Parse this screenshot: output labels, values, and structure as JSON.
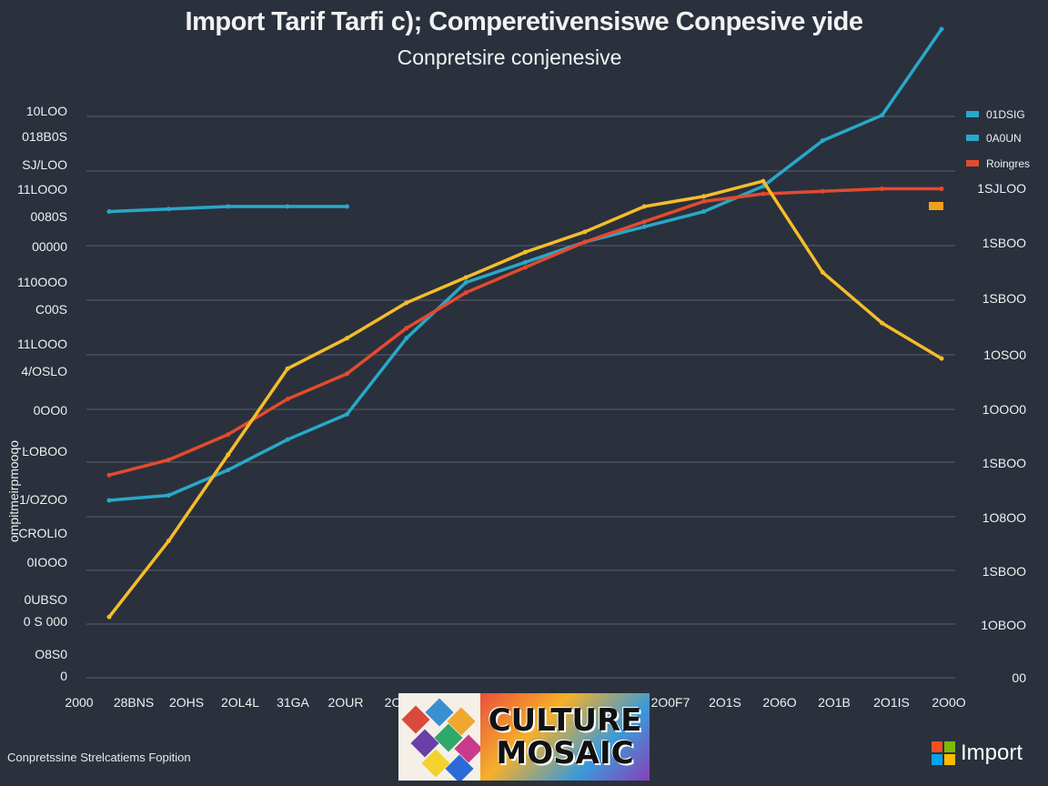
{
  "title": "Import Tarif Tarfi c); Comperetivensiswe Conpesive yide",
  "subtitle": "Conpretsire conjenesive",
  "caption": "Conpretssine Strelcatiems Fopition",
  "brand": {
    "text": "Import",
    "logo": "windows-logo-icon"
  },
  "image_overlay": {
    "lines": [
      "CULTURE",
      "MOSAIC"
    ]
  },
  "chart_data": {
    "type": "line",
    "title": "Import Tarif Tarfi c); Comperetivensiswe Conpesive yide",
    "subtitle": "Conpretsire conjenesive",
    "x": [
      "2000",
      "2005",
      "2009",
      "2011",
      "2012",
      "2014",
      "2015",
      "2016",
      "2017",
      "2018",
      "2019",
      "2020",
      "2021",
      "2022",
      "2023"
    ],
    "x_tick_labels": [
      "2000",
      "28BNS",
      "2OHS",
      "2OL4L",
      "31GA",
      "2OUR",
      "2O",
      "",
      "",
      "",
      "2O0F7",
      "2O1S",
      "2O6O",
      "2O1B",
      "2O1IS",
      "2O0O"
    ],
    "y_tick_labels_left": [
      "10LOO",
      "018B0S",
      "SJ/LOO",
      "11LOOO",
      "0080S",
      "00000",
      "110OOO",
      "C00S",
      "11LOOO",
      "4/OSLO",
      "0OO0",
      "ĿOBOO",
      "1/OZOO",
      "CROLIO",
      "0IOOO",
      "0UBSO",
      "0 S 000",
      "O8S0",
      "0"
    ],
    "y_tick_labels_right": [
      "1SJLOO",
      "1SBOO",
      "1SBOO",
      "1OSO0",
      "1OOO0",
      "1SBOO",
      "1O8OO",
      "1SBOO",
      "1OBOO",
      "00"
    ],
    "ylabel_left": "ompitmeirpmooqo",
    "ylim": [
      0,
      100
    ],
    "legend_position": "top-right",
    "grid": true,
    "series": [
      {
        "name": "01DSIG",
        "color": "#29a8c9",
        "values": [
          92,
          92.5,
          93,
          93,
          93,
          null,
          null,
          null,
          null,
          null,
          null,
          null,
          null,
          null,
          null
        ]
      },
      {
        "name": "0A0UN",
        "color": "#29a8c9",
        "values": [
          35,
          36,
          41,
          47,
          52,
          67,
          78,
          82,
          86,
          89,
          92,
          97,
          106,
          111,
          128
        ]
      },
      {
        "name": "Roingres",
        "color": "#e44a2e",
        "values": [
          40,
          43,
          48,
          55,
          60,
          69,
          76,
          81,
          86,
          90,
          94,
          95.5,
          96,
          96.5,
          96.5
        ]
      },
      {
        "name": "",
        "color": "#f5bd2a",
        "values": [
          12,
          27,
          44,
          61,
          67,
          74,
          79,
          84,
          88,
          93,
          95,
          98,
          80,
          70,
          63
        ]
      }
    ]
  },
  "colors": {
    "background": "#2a313d",
    "grid": "#59606e",
    "text": "#f0f0f0"
  }
}
